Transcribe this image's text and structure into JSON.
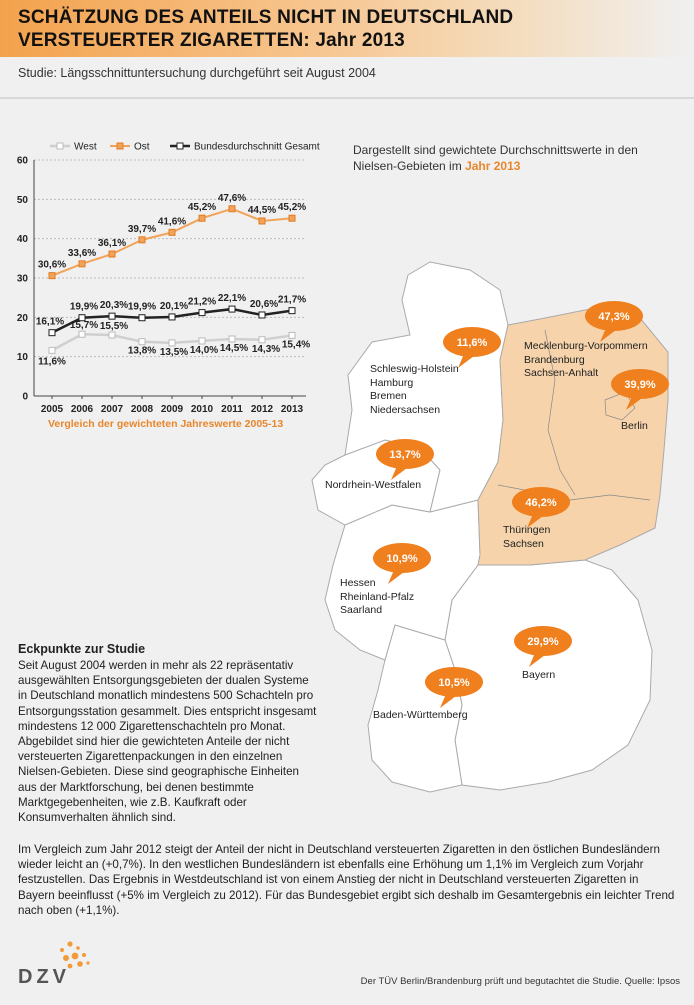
{
  "header": {
    "title_line1": "SCHÄTZUNG DES ANTEILS NICHT IN DEUTSCHLAND",
    "title_line2": "VERSTEUERTER ZIGARETTEN: Jahr 2013",
    "subtitle": "Studie: Längsschnittuntersuchung durchgeführt seit August 2004"
  },
  "colors": {
    "accent": "#e8862c",
    "map_east": "#f6d3ab",
    "map_west": "#ffffff",
    "bubble": "#f07f1e"
  },
  "chart_data": {
    "type": "line",
    "categories": [
      "2005",
      "2006",
      "2007",
      "2008",
      "2009",
      "2010",
      "2011",
      "2012",
      "2013"
    ],
    "series": [
      {
        "name": "West",
        "values": [
          11.6,
          15.7,
          15.5,
          13.8,
          13.5,
          14.0,
          14.5,
          14.3,
          15.4
        ],
        "labels": [
          "11,6%",
          "15,7%",
          "15,5%",
          "13,8%",
          "13,5%",
          "14,0%",
          "14,5%",
          "14,3%",
          "15,4%"
        ]
      },
      {
        "name": "Ost",
        "values": [
          30.6,
          33.6,
          36.1,
          39.7,
          41.6,
          45.2,
          47.6,
          44.5,
          45.2
        ],
        "labels": [
          "30,6%",
          "33,6%",
          "36,1%",
          "39,7%",
          "41,6%",
          "45,2%",
          "47,6%",
          "44,5%",
          "45,2%"
        ]
      },
      {
        "name": "Bundesdurchschnitt Gesamt",
        "values": [
          16.1,
          19.9,
          20.3,
          19.9,
          20.1,
          21.2,
          22.1,
          20.6,
          21.7
        ],
        "labels": [
          "16,1%",
          "19,9%",
          "20,3%",
          "19,9%",
          "20,1%",
          "21,2%",
          "22,1%",
          "20,6%",
          "21,7%"
        ]
      }
    ],
    "yticks": [
      "0",
      "10",
      "20",
      "30",
      "40",
      "50",
      "60"
    ],
    "ylim": [
      0,
      60
    ],
    "grid": true,
    "legend": "top",
    "caption": "Vergleich der gewichteten Jahreswerte 2005-13"
  },
  "note": {
    "text": "Dargestellt sind gewichtete Durchschnittswerte in den Nielsen-Gebieten im",
    "highlight": "Jahr 2013"
  },
  "map": {
    "regions": [
      {
        "lines": [
          "Schleswig-Holstein",
          "Hamburg",
          "Bremen",
          "Niedersachsen"
        ],
        "value": "11,6%"
      },
      {
        "lines": [
          "Nordrhein-Westfalen"
        ],
        "value": "13,7%"
      },
      {
        "lines": [
          "Hessen",
          "Rheinland-Pfalz",
          "Saarland"
        ],
        "value": "10,9%"
      },
      {
        "lines": [
          "Baden-Württemberg"
        ],
        "value": "10,5%"
      },
      {
        "lines": [
          "Bayern"
        ],
        "value": "29,9%"
      },
      {
        "lines": [
          "Mecklenburg-Vorpommern",
          "Brandenburg",
          "Sachsen-Anhalt"
        ],
        "value": "47,3%"
      },
      {
        "lines": [
          "Berlin"
        ],
        "value": "39,9%"
      },
      {
        "lines": [
          "Thüringen",
          "Sachsen"
        ],
        "value": "46,2%"
      }
    ]
  },
  "eckpunkte": {
    "title": "Eckpunkte zur Studie",
    "body": "Seit August 2004 werden in mehr als 22 repräsentativ ausgewählten Entsorgungsgebieten der dualen Systeme in Deutschland monatlich mindestens 500 Schachteln pro Entsorgungsstation gesammelt. Dies entspricht insgesamt mindestens 12 000 Zigarettenschachteln pro Monat. Abgebildet sind hier die gewichteten Anteile der nicht versteuerten Zigarettenpackungen in den einzelnen Nielsen-Gebieten. Diese sind geographische Einheiten aus der Marktforschung, bei denen bestimmte Marktgegebenheiten, wie z.B. Kaufkraft oder Konsumverhalten ähnlich sind."
  },
  "paragraph": "Im Vergleich zum Jahr 2012 steigt der Anteil der nicht in Deutschland versteuerten Zigaretten in den östlichen Bundesländern wieder leicht an (+0,7%). In den westlichen Bundesländern ist ebenfalls eine Erhöhung um 1,1% im Vergleich zum Vorjahr festzustellen. Das Ergebnis in Westdeutschland ist von einem Anstieg der nicht in Deutschland versteuerten Zigaretten in Bayern beeinflusst (+5% im Vergleich zu 2012). Für das Bundesgebiet ergibt sich deshalb im Gesamtergebnis ein leichter Trend nach oben (+1,1%).",
  "footer": {
    "logo": "DZV",
    "source": "Der TÜV Berlin/Brandenburg prüft und begutachtet die Studie. Quelle: Ipsos"
  }
}
